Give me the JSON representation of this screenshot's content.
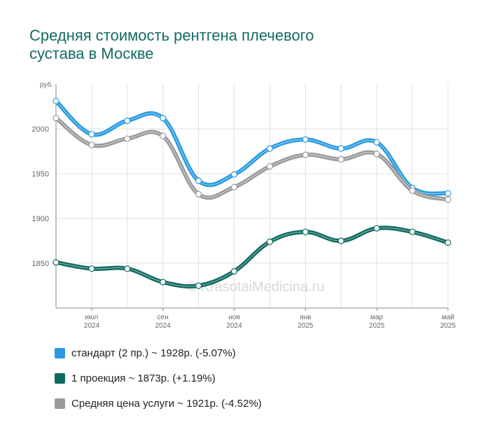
{
  "title": {
    "line1": "Средняя стоимость рентгена плечевого",
    "line2": "сустава в Москве"
  },
  "watermark": "© KrasotaiMedicina.ru",
  "chart_data": {
    "type": "line",
    "ylabel": "руб.",
    "ylim": [
      1800,
      2050
    ],
    "yticks": [
      1850,
      1900,
      1950,
      2000
    ],
    "grid": true,
    "legend_position": "bottom",
    "x": [
      "2024-06",
      "2024-07",
      "2024-08",
      "2024-09",
      "2024-10",
      "2024-11",
      "2024-12",
      "2025-01",
      "2025-02",
      "2025-03",
      "2025-04",
      "2025-05"
    ],
    "xtick_labels": [
      {
        "index": 1,
        "month": "июл",
        "year": "2024"
      },
      {
        "index": 3,
        "month": "сен",
        "year": "2024"
      },
      {
        "index": 5,
        "month": "ноя",
        "year": "2024"
      },
      {
        "index": 7,
        "month": "янв",
        "year": "2025"
      },
      {
        "index": 9,
        "month": "мар",
        "year": "2025"
      },
      {
        "index": 11,
        "month": "май",
        "year": "2025"
      }
    ],
    "series": [
      {
        "name": "стандарт (2 пр.) ~ 1928р. (-5.07%)",
        "color": "#2a9be0",
        "values": [
          2031,
          1994,
          2009,
          2012,
          1942,
          1949,
          1978,
          1988,
          1978,
          1985,
          1934,
          1928
        ]
      },
      {
        "name": "Средняя цена услуги ~ 1921р. (-4.52%)",
        "color": "#9b9b9b",
        "values": [
          2012,
          1982,
          1989,
          1992,
          1927,
          1935,
          1958,
          1971,
          1966,
          1972,
          1931,
          1921
        ]
      },
      {
        "name": "1 проекция ~ 1873р. (+1.19%)",
        "color": "#0f6b60",
        "values": [
          1851,
          1844,
          1844,
          1829,
          1825,
          1841,
          1874,
          1885,
          1875,
          1889,
          1885,
          1873
        ]
      }
    ]
  },
  "legend": [
    {
      "label": "стандарт (2 пр.) ~ 1928р. (-5.07%)",
      "color": "#2a9be0"
    },
    {
      "label": "1 проекция ~ 1873р. (+1.19%)",
      "color": "#0f6b60"
    },
    {
      "label": "Средняя цена услуги ~ 1921р. (-4.52%)",
      "color": "#9b9b9b"
    }
  ]
}
